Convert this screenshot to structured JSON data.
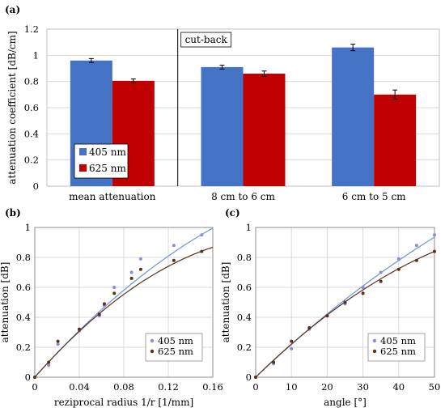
{
  "chart_data": [
    {
      "panel_label": "(a)",
      "type": "bar",
      "categories": [
        "mean attenuation",
        "8 cm to 6 cm",
        "6 cm to 5 cm"
      ],
      "series": [
        {
          "name": "405 nm",
          "color": "#4472C4",
          "values": [
            0.96,
            0.91,
            1.06
          ],
          "errors": [
            0.015,
            0.015,
            0.025
          ]
        },
        {
          "name": "625 nm",
          "color": "#C00000",
          "values": [
            0.805,
            0.86,
            0.7
          ],
          "errors": [
            0.015,
            0.02,
            0.035
          ]
        }
      ],
      "annotation": "cut-back",
      "xlabel": "",
      "ylabel": "attenuation coefficient [dB/cm]",
      "ylim": [
        0,
        1.2
      ],
      "yticks": [
        "0",
        "0.2",
        "0.4",
        "0.6",
        "0.8",
        "1",
        "1.2"
      ],
      "grid": true,
      "legend": "bottom-left"
    },
    {
      "panel_label": "(b)",
      "type": "scatter",
      "xlabel": "reziprocal radius 1/r [1/mm]",
      "ylabel": "attenuation [dB]",
      "xlim": [
        0,
        0.16
      ],
      "ylim": [
        0,
        1
      ],
      "xticks": [
        "0",
        "0.04",
        "0.08",
        "0.12",
        "0.16"
      ],
      "yticks": [
        "0",
        "0.2",
        "0.4",
        "0.6",
        "0.8",
        "1"
      ],
      "grid": true,
      "legend": "bottom-right",
      "series": [
        {
          "name": "405 nm",
          "color": "#8A8AE0",
          "fit_color": "#6A93E0",
          "x": [
            0,
            0.0125,
            0.0208,
            0.04,
            0.058,
            0.0625,
            0.0714,
            0.087,
            0.0952,
            0.125,
            0.15
          ],
          "y": [
            0,
            0.08,
            0.22,
            0.31,
            0.41,
            0.48,
            0.6,
            0.7,
            0.79,
            0.88,
            0.95
          ],
          "fit": {
            "a": 8.3,
            "b": -13.0
          }
        },
        {
          "name": "625 nm",
          "color": "#5A3018",
          "fit_color": "#5A3018",
          "x": [
            0,
            0.0125,
            0.0208,
            0.04,
            0.058,
            0.0625,
            0.0714,
            0.087,
            0.0952,
            0.125,
            0.15
          ],
          "y": [
            0,
            0.1,
            0.24,
            0.32,
            0.42,
            0.49,
            0.56,
            0.66,
            0.72,
            0.78,
            0.84
          ],
          "fit": {
            "a": 8.4,
            "b": -18.6
          }
        }
      ]
    },
    {
      "panel_label": "(c)",
      "type": "scatter",
      "xlabel": "angle [°]",
      "ylabel": "attenuation [dB]",
      "xlim": [
        0,
        50
      ],
      "ylim": [
        0,
        1
      ],
      "xticks": [
        "0",
        "10",
        "20",
        "30",
        "40",
        "50"
      ],
      "yticks": [
        "0",
        "0.2",
        "0.4",
        "0.6",
        "0.8",
        "1"
      ],
      "grid": true,
      "legend": "bottom-right",
      "series": [
        {
          "name": "405 nm",
          "color": "#8A8AE0",
          "fit_color": "#6A93E0",
          "x": [
            0,
            5,
            10,
            15,
            20,
            25,
            30,
            35,
            40,
            45,
            50
          ],
          "y": [
            0,
            0.09,
            0.19,
            0.32,
            0.41,
            0.49,
            0.6,
            0.7,
            0.79,
            0.88,
            0.95
          ],
          "fit": {
            "a": 0.0227,
            "b": -8e-05
          }
        },
        {
          "name": "625 nm",
          "color": "#5A3018",
          "fit_color": "#5A3018",
          "x": [
            0,
            5,
            10,
            15,
            20,
            25,
            30,
            35,
            40,
            45,
            50
          ],
          "y": [
            0,
            0.1,
            0.24,
            0.33,
            0.41,
            0.5,
            0.56,
            0.64,
            0.72,
            0.78,
            0.84
          ],
          "fit": {
            "a": 0.0234,
            "b": -0.000132
          }
        }
      ]
    }
  ]
}
